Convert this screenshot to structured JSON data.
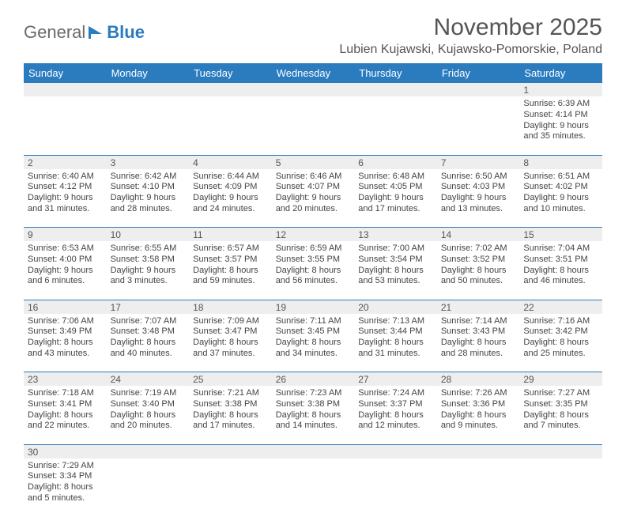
{
  "logo": {
    "part1": "General",
    "part2": "Blue"
  },
  "title": "November 2025",
  "location": "Lubien Kujawski, Kujawsko-Pomorskie, Poland",
  "columns": [
    "Sunday",
    "Monday",
    "Tuesday",
    "Wednesday",
    "Thursday",
    "Friday",
    "Saturday"
  ],
  "colors": {
    "header_bg": "#2b7bbf",
    "header_text": "#ffffff",
    "cell_border": "#2b7bbf",
    "daynum_bg": "#eeeeee",
    "text": "#444444"
  },
  "weeks": [
    [
      null,
      null,
      null,
      null,
      null,
      null,
      {
        "n": "1",
        "sr": "Sunrise: 6:39 AM",
        "ss": "Sunset: 4:14 PM",
        "d1": "Daylight: 9 hours",
        "d2": "and 35 minutes."
      }
    ],
    [
      {
        "n": "2",
        "sr": "Sunrise: 6:40 AM",
        "ss": "Sunset: 4:12 PM",
        "d1": "Daylight: 9 hours",
        "d2": "and 31 minutes."
      },
      {
        "n": "3",
        "sr": "Sunrise: 6:42 AM",
        "ss": "Sunset: 4:10 PM",
        "d1": "Daylight: 9 hours",
        "d2": "and 28 minutes."
      },
      {
        "n": "4",
        "sr": "Sunrise: 6:44 AM",
        "ss": "Sunset: 4:09 PM",
        "d1": "Daylight: 9 hours",
        "d2": "and 24 minutes."
      },
      {
        "n": "5",
        "sr": "Sunrise: 6:46 AM",
        "ss": "Sunset: 4:07 PM",
        "d1": "Daylight: 9 hours",
        "d2": "and 20 minutes."
      },
      {
        "n": "6",
        "sr": "Sunrise: 6:48 AM",
        "ss": "Sunset: 4:05 PM",
        "d1": "Daylight: 9 hours",
        "d2": "and 17 minutes."
      },
      {
        "n": "7",
        "sr": "Sunrise: 6:50 AM",
        "ss": "Sunset: 4:03 PM",
        "d1": "Daylight: 9 hours",
        "d2": "and 13 minutes."
      },
      {
        "n": "8",
        "sr": "Sunrise: 6:51 AM",
        "ss": "Sunset: 4:02 PM",
        "d1": "Daylight: 9 hours",
        "d2": "and 10 minutes."
      }
    ],
    [
      {
        "n": "9",
        "sr": "Sunrise: 6:53 AM",
        "ss": "Sunset: 4:00 PM",
        "d1": "Daylight: 9 hours",
        "d2": "and 6 minutes."
      },
      {
        "n": "10",
        "sr": "Sunrise: 6:55 AM",
        "ss": "Sunset: 3:58 PM",
        "d1": "Daylight: 9 hours",
        "d2": "and 3 minutes."
      },
      {
        "n": "11",
        "sr": "Sunrise: 6:57 AM",
        "ss": "Sunset: 3:57 PM",
        "d1": "Daylight: 8 hours",
        "d2": "and 59 minutes."
      },
      {
        "n": "12",
        "sr": "Sunrise: 6:59 AM",
        "ss": "Sunset: 3:55 PM",
        "d1": "Daylight: 8 hours",
        "d2": "and 56 minutes."
      },
      {
        "n": "13",
        "sr": "Sunrise: 7:00 AM",
        "ss": "Sunset: 3:54 PM",
        "d1": "Daylight: 8 hours",
        "d2": "and 53 minutes."
      },
      {
        "n": "14",
        "sr": "Sunrise: 7:02 AM",
        "ss": "Sunset: 3:52 PM",
        "d1": "Daylight: 8 hours",
        "d2": "and 50 minutes."
      },
      {
        "n": "15",
        "sr": "Sunrise: 7:04 AM",
        "ss": "Sunset: 3:51 PM",
        "d1": "Daylight: 8 hours",
        "d2": "and 46 minutes."
      }
    ],
    [
      {
        "n": "16",
        "sr": "Sunrise: 7:06 AM",
        "ss": "Sunset: 3:49 PM",
        "d1": "Daylight: 8 hours",
        "d2": "and 43 minutes."
      },
      {
        "n": "17",
        "sr": "Sunrise: 7:07 AM",
        "ss": "Sunset: 3:48 PM",
        "d1": "Daylight: 8 hours",
        "d2": "and 40 minutes."
      },
      {
        "n": "18",
        "sr": "Sunrise: 7:09 AM",
        "ss": "Sunset: 3:47 PM",
        "d1": "Daylight: 8 hours",
        "d2": "and 37 minutes."
      },
      {
        "n": "19",
        "sr": "Sunrise: 7:11 AM",
        "ss": "Sunset: 3:45 PM",
        "d1": "Daylight: 8 hours",
        "d2": "and 34 minutes."
      },
      {
        "n": "20",
        "sr": "Sunrise: 7:13 AM",
        "ss": "Sunset: 3:44 PM",
        "d1": "Daylight: 8 hours",
        "d2": "and 31 minutes."
      },
      {
        "n": "21",
        "sr": "Sunrise: 7:14 AM",
        "ss": "Sunset: 3:43 PM",
        "d1": "Daylight: 8 hours",
        "d2": "and 28 minutes."
      },
      {
        "n": "22",
        "sr": "Sunrise: 7:16 AM",
        "ss": "Sunset: 3:42 PM",
        "d1": "Daylight: 8 hours",
        "d2": "and 25 minutes."
      }
    ],
    [
      {
        "n": "23",
        "sr": "Sunrise: 7:18 AM",
        "ss": "Sunset: 3:41 PM",
        "d1": "Daylight: 8 hours",
        "d2": "and 22 minutes."
      },
      {
        "n": "24",
        "sr": "Sunrise: 7:19 AM",
        "ss": "Sunset: 3:40 PM",
        "d1": "Daylight: 8 hours",
        "d2": "and 20 minutes."
      },
      {
        "n": "25",
        "sr": "Sunrise: 7:21 AM",
        "ss": "Sunset: 3:38 PM",
        "d1": "Daylight: 8 hours",
        "d2": "and 17 minutes."
      },
      {
        "n": "26",
        "sr": "Sunrise: 7:23 AM",
        "ss": "Sunset: 3:38 PM",
        "d1": "Daylight: 8 hours",
        "d2": "and 14 minutes."
      },
      {
        "n": "27",
        "sr": "Sunrise: 7:24 AM",
        "ss": "Sunset: 3:37 PM",
        "d1": "Daylight: 8 hours",
        "d2": "and 12 minutes."
      },
      {
        "n": "28",
        "sr": "Sunrise: 7:26 AM",
        "ss": "Sunset: 3:36 PM",
        "d1": "Daylight: 8 hours",
        "d2": "and 9 minutes."
      },
      {
        "n": "29",
        "sr": "Sunrise: 7:27 AM",
        "ss": "Sunset: 3:35 PM",
        "d1": "Daylight: 8 hours",
        "d2": "and 7 minutes."
      }
    ],
    [
      {
        "n": "30",
        "sr": "Sunrise: 7:29 AM",
        "ss": "Sunset: 3:34 PM",
        "d1": "Daylight: 8 hours",
        "d2": "and 5 minutes."
      },
      null,
      null,
      null,
      null,
      null,
      null
    ]
  ]
}
